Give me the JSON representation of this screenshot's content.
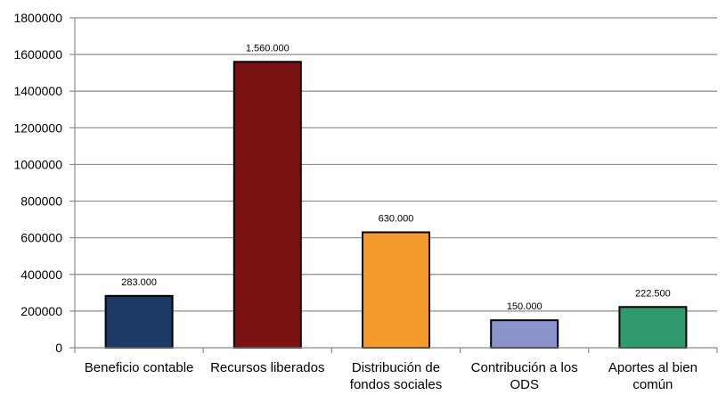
{
  "chart_data": {
    "type": "bar",
    "categories": [
      [
        "Beneficio contable"
      ],
      [
        "Recursos liberados"
      ],
      [
        "Distribución de",
        "fondos sociales"
      ],
      [
        "Contribución a los",
        "ODS"
      ],
      [
        "Aportes al bien",
        "común"
      ]
    ],
    "values": [
      283000,
      1560000,
      630000,
      150000,
      222500
    ],
    "data_labels": [
      "283.000",
      "1.560.000",
      "630.000",
      "150.000",
      "222.500"
    ],
    "colors": [
      "#1b3a66",
      "#7a1414",
      "#f59a2f",
      "#8a93cc",
      "#2f9a6c"
    ],
    "yticks": [
      "0",
      "200000",
      "400000",
      "600000",
      "800000",
      "1000000",
      "1200000",
      "1400000",
      "1600000",
      "1800000"
    ],
    "ylim": [
      0,
      1800000
    ],
    "grid": true,
    "legend": "none",
    "title": "",
    "xlabel": "",
    "ylabel": ""
  }
}
